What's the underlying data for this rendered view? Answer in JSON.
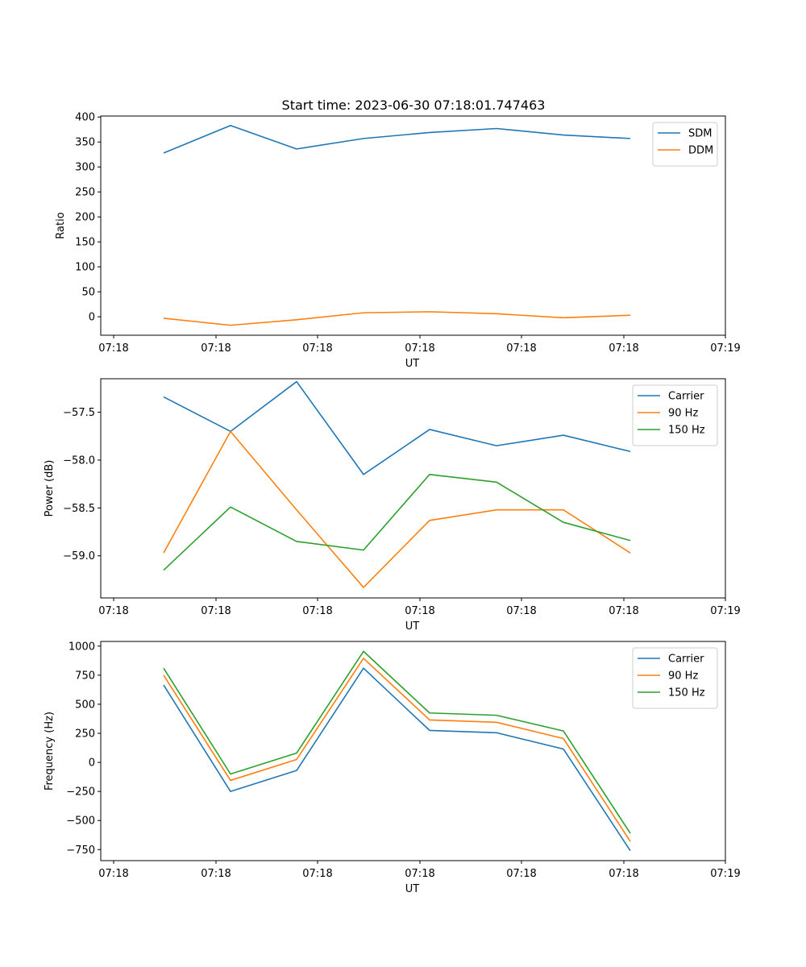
{
  "figure": {
    "title": "Start time: 2023-06-30 07:18:01.747463"
  },
  "chart_data": [
    {
      "type": "line",
      "xlabel": "UT",
      "ylabel": "Ratio",
      "xtick_labels": [
        "07:18",
        "07:18",
        "07:18",
        "07:18",
        "07:18",
        "07:18",
        "07:19"
      ],
      "yticks": [
        0,
        50,
        100,
        150,
        200,
        250,
        300,
        350,
        400
      ],
      "ylim": [
        -37,
        402
      ],
      "legend_loc": "top-right",
      "grid": false,
      "series": [
        {
          "name": "SDM",
          "color": "#1f77b4",
          "values": [
            328,
            383,
            336,
            357,
            369,
            377,
            364,
            357
          ]
        },
        {
          "name": "DDM",
          "color": "#ff7f0e",
          "values": [
            -3,
            -17,
            -6,
            8,
            10,
            6,
            -2,
            3
          ]
        }
      ]
    },
    {
      "type": "line",
      "xlabel": "UT",
      "ylabel": "Power (dB)",
      "xtick_labels": [
        "07:18",
        "07:18",
        "07:18",
        "07:18",
        "07:18",
        "07:18",
        "07:19"
      ],
      "yticks": [
        -59.0,
        -58.5,
        -58.0,
        -57.5
      ],
      "ytick_labels": [
        "−59.0",
        "−58.5",
        "−58.0",
        "−57.5"
      ],
      "ylim": [
        -59.44,
        -57.15
      ],
      "legend_loc": "top-right",
      "grid": false,
      "series": [
        {
          "name": "Carrier",
          "color": "#1f77b4",
          "values": [
            -57.34,
            -57.7,
            -57.18,
            -58.15,
            -57.68,
            -57.85,
            -57.74,
            -57.91
          ]
        },
        {
          "name": "90 Hz",
          "color": "#ff7f0e",
          "values": [
            -58.97,
            -57.7,
            -58.52,
            -59.33,
            -58.63,
            -58.52,
            -58.52,
            -58.97
          ]
        },
        {
          "name": "150 Hz",
          "color": "#2ca02c",
          "values": [
            -59.15,
            -58.49,
            -58.85,
            -58.94,
            -58.15,
            -58.23,
            -58.65,
            -58.84
          ]
        }
      ]
    },
    {
      "type": "line",
      "xlabel": "UT",
      "ylabel": "Frequency (Hz)",
      "xtick_labels": [
        "07:18",
        "07:18",
        "07:18",
        "07:18",
        "07:18",
        "07:18",
        "07:19"
      ],
      "yticks": [
        -750,
        -500,
        -250,
        0,
        250,
        500,
        750,
        1000
      ],
      "ytick_labels": [
        "−750",
        "−500",
        "−250",
        "0",
        "250",
        "500",
        "750",
        "1000"
      ],
      "ylim": [
        -845,
        1040
      ],
      "legend_loc": "top-right",
      "grid": false,
      "series": [
        {
          "name": "Carrier",
          "color": "#1f77b4",
          "values": [
            665,
            -250,
            -70,
            810,
            275,
            255,
            115,
            -760
          ]
        },
        {
          "name": "90 Hz",
          "color": "#ff7f0e",
          "values": [
            750,
            -155,
            25,
            895,
            365,
            345,
            205,
            -680
          ]
        },
        {
          "name": "150 Hz",
          "color": "#2ca02c",
          "values": [
            810,
            -100,
            80,
            955,
            425,
            405,
            270,
            -610
          ]
        }
      ]
    }
  ]
}
